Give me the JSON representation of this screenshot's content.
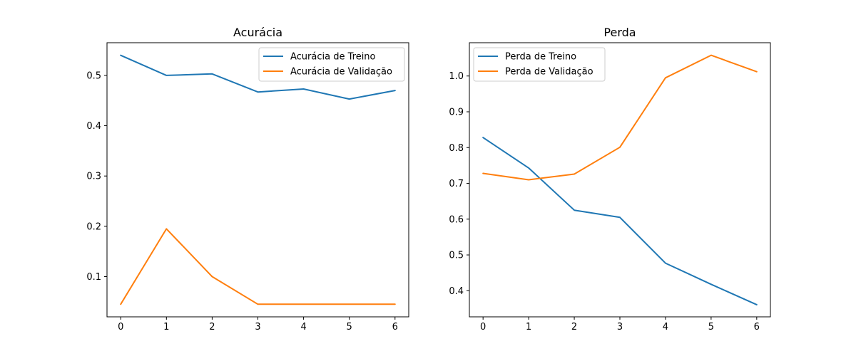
{
  "chart_data": [
    {
      "type": "line",
      "title": "Acurácia",
      "xlabel": "",
      "ylabel": "",
      "x": [
        0,
        1,
        2,
        3,
        4,
        5,
        6
      ],
      "xticks": [
        "0",
        "1",
        "2",
        "3",
        "4",
        "5",
        "6"
      ],
      "xlim": [
        -0.3,
        6.3
      ],
      "yticks": [
        "0.1",
        "0.2",
        "0.3",
        "0.4",
        "0.5"
      ],
      "ylim": [
        0.02,
        0.565
      ],
      "legend": "top-right",
      "grid": false,
      "series": [
        {
          "name": "Acurácia de Treino",
          "color": "#1f77b4",
          "values": [
            0.54,
            0.5,
            0.503,
            0.467,
            0.473,
            0.453,
            0.47
          ]
        },
        {
          "name": "Acurácia de Validação",
          "color": "#ff7f0e",
          "values": [
            0.045,
            0.195,
            0.1,
            0.045,
            0.045,
            0.045,
            0.045
          ]
        }
      ]
    },
    {
      "type": "line",
      "title": "Perda",
      "xlabel": "",
      "ylabel": "",
      "x": [
        0,
        1,
        2,
        3,
        4,
        5,
        6
      ],
      "xticks": [
        "0",
        "1",
        "2",
        "3",
        "4",
        "5",
        "6"
      ],
      "xlim": [
        -0.3,
        6.3
      ],
      "yticks": [
        "0.4",
        "0.5",
        "0.6",
        "0.7",
        "0.8",
        "0.9",
        "1.0"
      ],
      "ylim": [
        0.327,
        1.093
      ],
      "legend": "top-left",
      "grid": false,
      "series": [
        {
          "name": "Perda de Treino",
          "color": "#1f77b4",
          "values": [
            0.828,
            0.743,
            0.625,
            0.605,
            0.477,
            0.418,
            0.361
          ]
        },
        {
          "name": "Perda de Validação",
          "color": "#ff7f0e",
          "values": [
            0.728,
            0.71,
            0.726,
            0.801,
            0.995,
            1.058,
            1.012
          ]
        }
      ]
    }
  ]
}
